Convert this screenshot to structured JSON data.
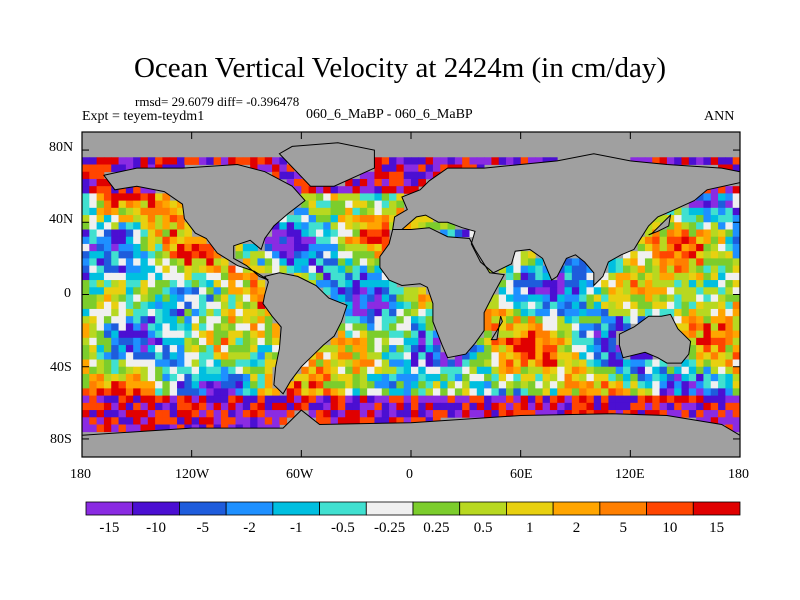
{
  "title": "Ocean Vertical Velocity at 2424m (in cm/day)",
  "stats": "rmsd= 29.6079 diff= -0.396478",
  "expt": "Expt = teyem-teydm1",
  "cases": "060_6_MaBP - 060_6_MaBP",
  "season": "ANN",
  "map": {
    "land_color": "#a0a0a0",
    "lat_ticks": [
      "80N",
      "40N",
      "0",
      "40S",
      "80S"
    ],
    "lon_ticks": [
      "180",
      "120W",
      "60W",
      "0",
      "60E",
      "120E",
      "180"
    ]
  },
  "colorbar": {
    "colors": [
      "#8a2be2",
      "#4b0fd2",
      "#1e5cdc",
      "#1e90ff",
      "#00bfe0",
      "#40e0d0",
      "#f0f0f0",
      "#7ccd2c",
      "#b8d820",
      "#e8d010",
      "#ffa500",
      "#ff7f00",
      "#ff4500",
      "#e00000"
    ],
    "labels": [
      "-15",
      "-10",
      "-5",
      "-2",
      "-1",
      "-0.5",
      "-0.25",
      "0.25",
      "0.5",
      "1",
      "2",
      "5",
      "10",
      "15"
    ]
  }
}
